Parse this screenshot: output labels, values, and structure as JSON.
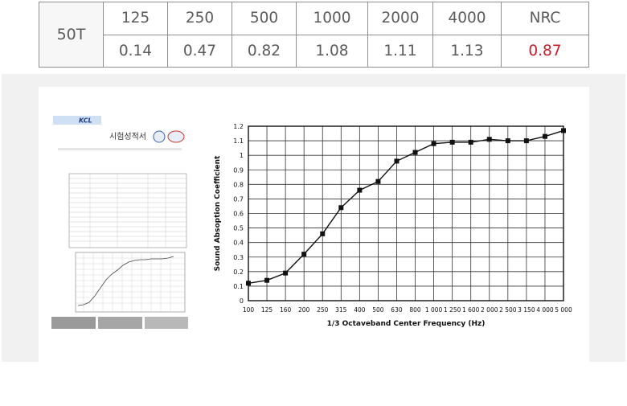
{
  "table": {
    "model": "50T",
    "headers": [
      "125",
      "250",
      "500",
      "1000",
      "2000",
      "4000",
      "NRC"
    ],
    "values": [
      "0.14",
      "0.47",
      "0.82",
      "1.08",
      "1.11",
      "1.13",
      "0.87"
    ],
    "colors": {
      "text": "#5b5b5b",
      "nrc_value": "#c3202a",
      "border": "#8f8f8f"
    }
  },
  "report": {
    "logo_text": "KCL",
    "title": "시험성적서"
  },
  "chart_data": {
    "type": "line",
    "xlabel": "1/3 Octaveband Center Frequency (Hz)",
    "ylabel": "Sound Absoption Coefficient",
    "categories": [
      "100",
      "125",
      "160",
      "200",
      "250",
      "315",
      "400",
      "500",
      "630",
      "800",
      "1 000",
      "1 250",
      "1 600",
      "2 000",
      "2 500",
      "3 150",
      "4 000",
      "5 000"
    ],
    "y_ticks": [
      "0",
      "0.1",
      "0.2",
      "0.3",
      "0.4",
      "0.5",
      "0.6",
      "0.7",
      "0.8",
      "0.9",
      "1",
      "1.1",
      "1.2"
    ],
    "ylim": [
      0,
      1.2
    ],
    "grid": true,
    "series": [
      {
        "values": [
          0.12,
          0.14,
          0.19,
          0.32,
          0.46,
          0.64,
          0.76,
          0.82,
          0.96,
          1.02,
          1.08,
          1.09,
          1.09,
          1.11,
          1.1,
          1.1,
          1.13,
          1.17
        ]
      }
    ]
  }
}
